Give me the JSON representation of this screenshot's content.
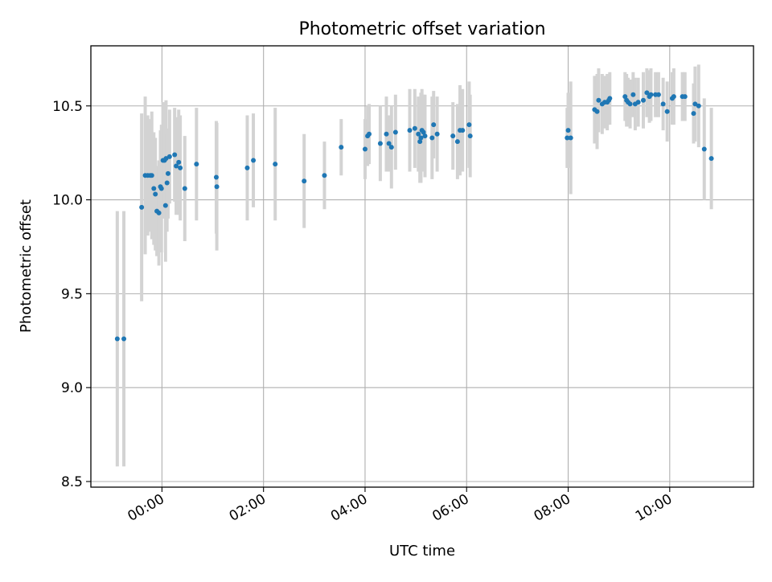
{
  "chart_data": {
    "type": "scatter",
    "title": "Photometric offset variation",
    "xlabel": "UTC time",
    "ylabel": "Photometric offset",
    "x_unit": "hours UTC",
    "xlim": [
      -1.4,
      11.65
    ],
    "ylim": [
      8.47,
      10.82
    ],
    "xticks": [
      0,
      2,
      4,
      6,
      8,
      10
    ],
    "xtick_labels": [
      "00:00",
      "02:00",
      "04:00",
      "06:00",
      "08:00",
      "10:00"
    ],
    "yticks": [
      8.5,
      9.0,
      9.5,
      10.0,
      10.5
    ],
    "ytick_labels": [
      "8.5",
      "9.0",
      "9.5",
      "10.0",
      "10.5"
    ],
    "grid": true,
    "point_color": "#1f77b4",
    "errorbar_color": "#d3d3d3",
    "series": [
      {
        "x": [
          -0.88,
          -0.75,
          -0.4,
          -0.33,
          -0.28,
          -0.23,
          -0.2,
          -0.16,
          -0.13,
          -0.1,
          -0.06,
          -0.03,
          -0.01,
          0.02,
          0.05,
          0.07,
          0.08,
          0.1,
          0.12,
          0.15,
          0.25,
          0.28,
          0.33,
          0.36,
          0.45,
          0.68,
          1.07,
          1.08,
          1.68,
          1.8,
          2.23,
          2.8,
          3.2,
          3.53,
          4.0,
          4.05,
          4.08,
          4.3,
          4.42,
          4.47,
          4.52,
          4.6,
          4.88,
          4.98,
          5.05,
          5.08,
          5.1,
          5.12,
          5.15,
          5.18,
          5.32,
          5.35,
          5.42,
          5.73,
          5.82,
          5.87,
          5.92,
          6.05,
          6.07,
          7.98,
          8.0,
          8.05,
          8.52,
          8.57,
          8.6,
          8.67,
          8.72,
          8.77,
          8.8,
          8.82,
          9.12,
          9.15,
          9.18,
          9.22,
          9.28,
          9.32,
          9.38,
          9.48,
          9.55,
          9.6,
          9.63,
          9.72,
          9.78,
          9.87,
          9.95,
          10.05,
          10.08,
          10.25,
          10.3,
          10.47,
          10.5,
          10.57,
          10.68,
          10.82
        ],
        "y": [
          9.26,
          9.26,
          9.96,
          10.13,
          10.13,
          10.13,
          10.13,
          10.06,
          10.03,
          9.94,
          9.93,
          10.07,
          10.06,
          10.21,
          10.21,
          9.97,
          10.22,
          10.09,
          10.14,
          10.23,
          10.24,
          10.18,
          10.2,
          10.17,
          10.06,
          10.19,
          10.12,
          10.07,
          10.17,
          10.21,
          10.19,
          10.1,
          10.13,
          10.28,
          10.27,
          10.34,
          10.35,
          10.3,
          10.35,
          10.3,
          10.28,
          10.36,
          10.37,
          10.38,
          10.35,
          10.31,
          10.33,
          10.37,
          10.36,
          10.34,
          10.33,
          10.4,
          10.35,
          10.34,
          10.31,
          10.37,
          10.37,
          10.4,
          10.34,
          10.33,
          10.37,
          10.33,
          10.48,
          10.47,
          10.53,
          10.51,
          10.52,
          10.52,
          10.53,
          10.54,
          10.55,
          10.53,
          10.52,
          10.51,
          10.56,
          10.51,
          10.52,
          10.53,
          10.57,
          10.55,
          10.56,
          10.56,
          10.56,
          10.51,
          10.47,
          10.54,
          10.55,
          10.55,
          10.55,
          10.46,
          10.51,
          10.5,
          10.27,
          10.22
        ],
        "yerr": [
          0.68,
          0.68,
          0.5,
          0.42,
          0.32,
          0.3,
          0.34,
          0.3,
          0.3,
          0.24,
          0.28,
          0.3,
          0.34,
          0.31,
          0.31,
          0.3,
          0.31,
          0.26,
          0.24,
          0.25,
          0.25,
          0.26,
          0.28,
          0.28,
          0.28,
          0.3,
          0.3,
          0.34,
          0.28,
          0.25,
          0.3,
          0.25,
          0.18,
          0.15,
          0.16,
          0.16,
          0.16,
          0.2,
          0.2,
          0.15,
          0.22,
          0.2,
          0.22,
          0.21,
          0.2,
          0.22,
          0.24,
          0.22,
          0.2,
          0.22,
          0.22,
          0.18,
          0.2,
          0.18,
          0.2,
          0.24,
          0.22,
          0.23,
          0.22,
          0.16,
          0.2,
          0.3,
          0.18,
          0.2,
          0.17,
          0.16,
          0.14,
          0.15,
          0.13,
          0.14,
          0.13,
          0.14,
          0.13,
          0.13,
          0.12,
          0.14,
          0.13,
          0.15,
          0.13,
          0.14,
          0.14,
          0.12,
          0.12,
          0.14,
          0.16,
          0.14,
          0.15,
          0.13,
          0.13,
          0.16,
          0.2,
          0.22,
          0.27,
          0.27
        ]
      }
    ]
  }
}
